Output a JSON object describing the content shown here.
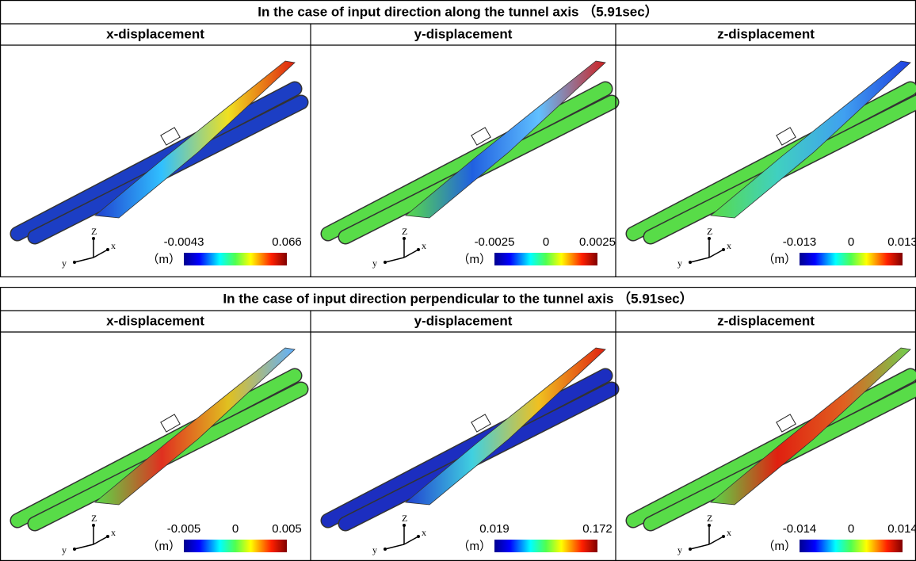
{
  "sections": [
    {
      "title": "In the case of input direction along the tunnel axis （5.91sec）",
      "panels": [
        {
          "heading": "x-displacement",
          "scale_labels": [
            "-0.0043",
            "0.066"
          ],
          "unit": "（m）",
          "axis_labels": [
            "Z",
            "y",
            "x"
          ]
        },
        {
          "heading": "y-displacement",
          "scale_labels": [
            "-0.0025",
            "0",
            "0.0025"
          ],
          "unit": "（m）",
          "axis_labels": [
            "Z",
            "y",
            "x"
          ]
        },
        {
          "heading": "z-displacement",
          "scale_labels": [
            "-0.013",
            "0",
            "0.013"
          ],
          "unit": "（m）",
          "axis_labels": [
            "Z",
            "y",
            "x"
          ]
        }
      ]
    },
    {
      "title": "In the case of input direction perpendicular to the tunnel axis （5.91sec）",
      "panels": [
        {
          "heading": "x-displacement",
          "scale_labels": [
            "-0.005",
            "0",
            "0.005"
          ],
          "unit": "（m）",
          "axis_labels": [
            "Z",
            "y",
            "x"
          ]
        },
        {
          "heading": "y-displacement",
          "scale_labels": [
            "0.019",
            "0.172"
          ],
          "unit": "（m）",
          "axis_labels": [
            "Z",
            "y",
            "x"
          ]
        },
        {
          "heading": "z-displacement",
          "scale_labels": [
            "-0.014",
            "0",
            "0.014"
          ],
          "unit": "（m）",
          "axis_labels": [
            "Z",
            "y",
            "x"
          ]
        }
      ]
    }
  ]
}
